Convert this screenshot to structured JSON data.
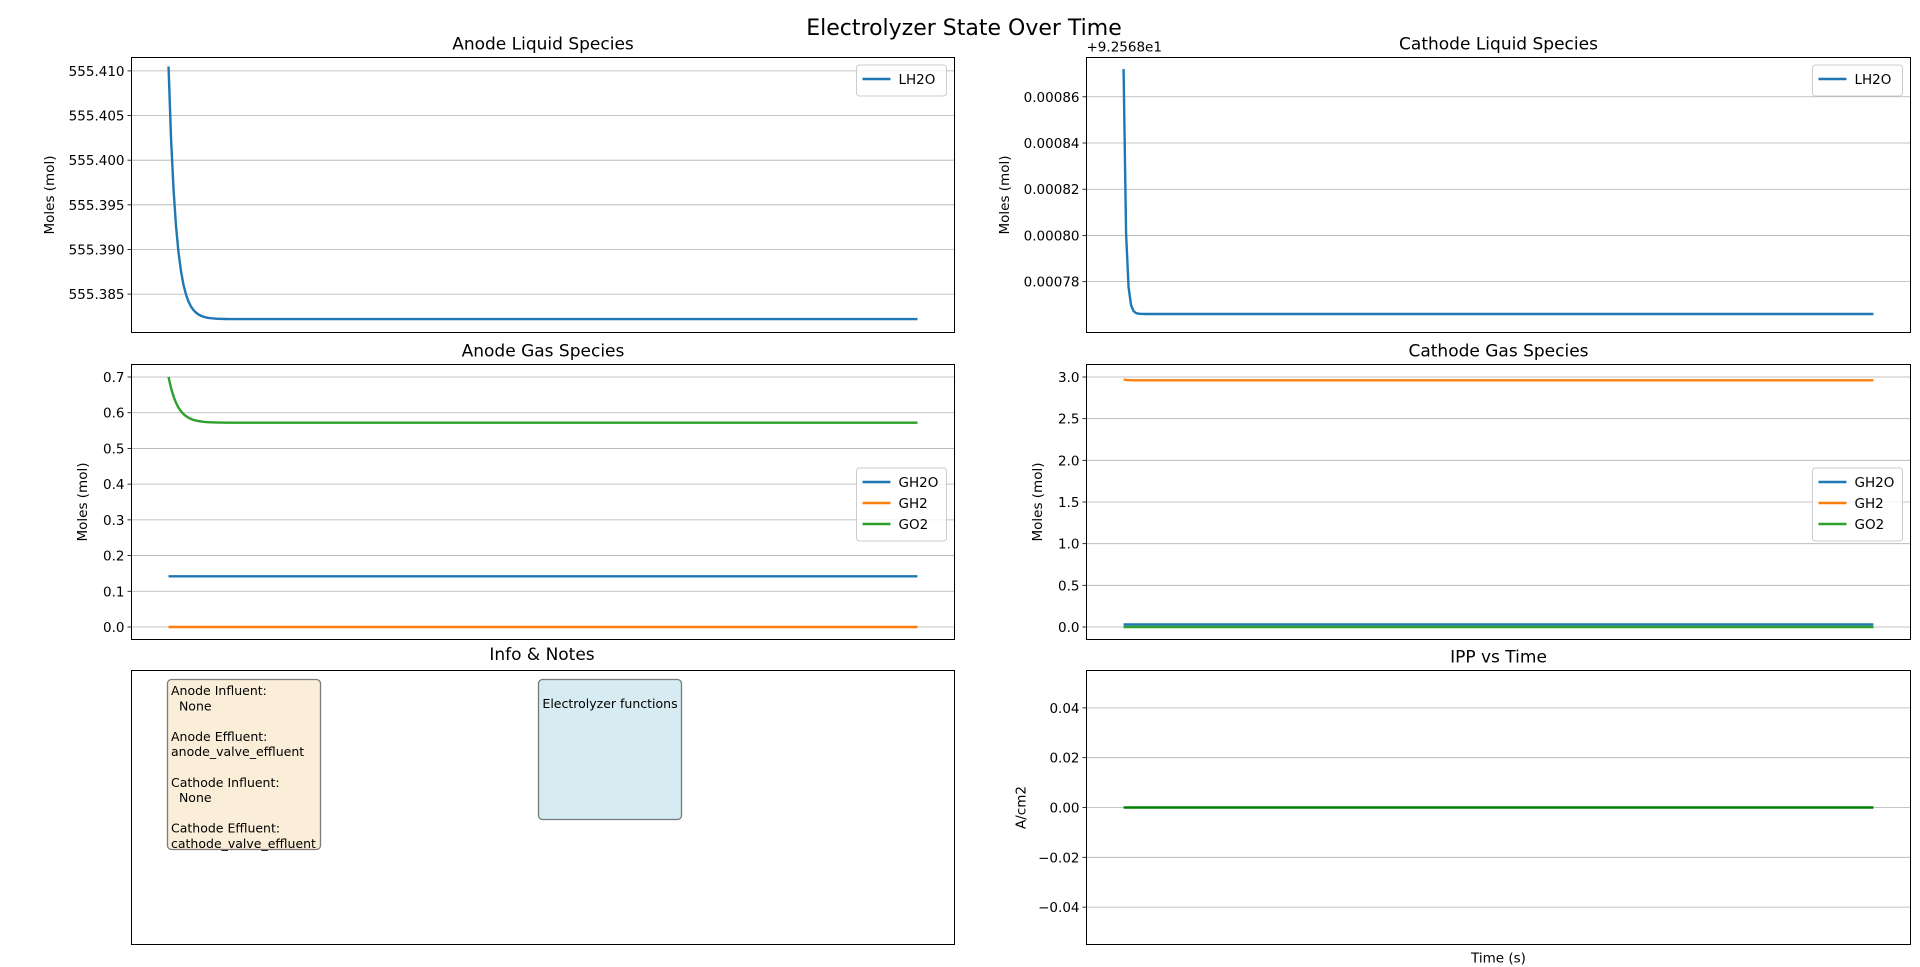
{
  "figure": {
    "suptitle": "Electrolyzer State Over Time"
  },
  "colors": {
    "blue": "#1f77b4",
    "orange": "#ff7f0e",
    "green": "#2ca02c",
    "ipp_green": "#008000",
    "grid": "#b0b0b0",
    "wheat_box": "#f5deb3",
    "lightblue_box": "#add8e6"
  },
  "chart_data": [
    {
      "id": "anode_liquid",
      "type": "line",
      "title": "Anode Liquid Species",
      "ylabel": "Moles (mol)",
      "xlabel": "",
      "ylim": [
        555.3807,
        555.4115
      ],
      "yticks": [
        555.385,
        555.39,
        555.395,
        555.4,
        555.405,
        555.41
      ],
      "ytick_labels": [
        "555.385",
        "555.390",
        "555.395",
        "555.400",
        "555.405",
        "555.410"
      ],
      "y_offset_label": "",
      "grid": "y",
      "legend": "upper right",
      "series": [
        {
          "name": "LH2O",
          "color": "blue",
          "start": 555.4105,
          "end": 555.3822,
          "tau": 0.01
        }
      ]
    },
    {
      "id": "cathode_liquid",
      "type": "line",
      "title": "Cathode Liquid Species",
      "ylabel": "Moles (mol)",
      "xlabel": "",
      "ylim": [
        0.000758,
        0.000877
      ],
      "yticks": [
        0.00078,
        0.0008,
        0.00082,
        0.00084,
        0.00086
      ],
      "ytick_labels": [
        "0.00078",
        "0.00080",
        "0.00082",
        "0.00084",
        "0.00086"
      ],
      "y_offset_label": "+9.2568e1",
      "grid": "y",
      "legend": "upper right",
      "series": [
        {
          "name": "LH2O",
          "color": "blue",
          "start": 0.000872,
          "end": 0.000766,
          "tau": 0.003
        }
      ]
    },
    {
      "id": "anode_gas",
      "type": "line",
      "title": "Anode Gas Species",
      "ylabel": "Moles (mol)",
      "xlabel": "",
      "ylim": [
        -0.035,
        0.735
      ],
      "yticks": [
        0.0,
        0.1,
        0.2,
        0.3,
        0.4,
        0.5,
        0.6,
        0.7
      ],
      "ytick_labels": [
        "0.0",
        "0.1",
        "0.2",
        "0.3",
        "0.4",
        "0.5",
        "0.6",
        "0.7"
      ],
      "y_offset_label": "",
      "grid": "y",
      "legend": "center right",
      "series": [
        {
          "name": "GH2O",
          "color": "blue",
          "start": 0.142,
          "end": 0.142,
          "tau": 0.01
        },
        {
          "name": "GH2",
          "color": "orange",
          "start": 0.0,
          "end": 0.0,
          "tau": 0.01
        },
        {
          "name": "GO2",
          "color": "green",
          "start": 0.7,
          "end": 0.572,
          "tau": 0.012
        }
      ]
    },
    {
      "id": "cathode_gas",
      "type": "line",
      "title": "Cathode Gas Species",
      "ylabel": "Moles (mol)",
      "xlabel": "",
      "ylim": [
        -0.15,
        3.15
      ],
      "yticks": [
        0.0,
        0.5,
        1.0,
        1.5,
        2.0,
        2.5,
        3.0
      ],
      "ytick_labels": [
        "0.0",
        "0.5",
        "1.0",
        "1.5",
        "2.0",
        "2.5",
        "3.0"
      ],
      "y_offset_label": "",
      "grid": "y",
      "legend": "center right",
      "series": [
        {
          "name": "GH2O",
          "color": "blue",
          "start": 0.03,
          "end": 0.03,
          "tau": 0.01
        },
        {
          "name": "GH2",
          "color": "orange",
          "start": 2.97,
          "end": 2.96,
          "tau": 0.005
        },
        {
          "name": "GO2",
          "color": "green",
          "start": 0.0,
          "end": 0.0,
          "tau": 0.01
        }
      ]
    },
    {
      "id": "ipp",
      "type": "line",
      "title": "IPP vs Time",
      "ylabel": "A/cm2",
      "xlabel": "Time (s)",
      "ylim": [
        -0.055,
        0.055
      ],
      "yticks": [
        -0.04,
        -0.02,
        0.0,
        0.02,
        0.04
      ],
      "ytick_labels": [
        "−0.04",
        "−0.02",
        "0.00",
        "0.02",
        "0.04"
      ],
      "y_offset_label": "",
      "grid": "y",
      "legend": "none",
      "series": [
        {
          "name": "",
          "color": "ipp_green",
          "start": 0.0,
          "end": 0.0,
          "tau": 0.01
        }
      ]
    }
  ],
  "info_panel": {
    "title": "Info & Notes",
    "io_box": {
      "lines": [
        "Anode Influent:",
        "  None",
        "",
        "Anode Effluent:",
        "anode_valve_effluent",
        "",
        "Cathode Influent:",
        "  None",
        "",
        "Cathode Effluent:",
        "cathode_valve_effluent"
      ]
    },
    "functions_box": {
      "label": "Electrolyzer functions"
    }
  }
}
